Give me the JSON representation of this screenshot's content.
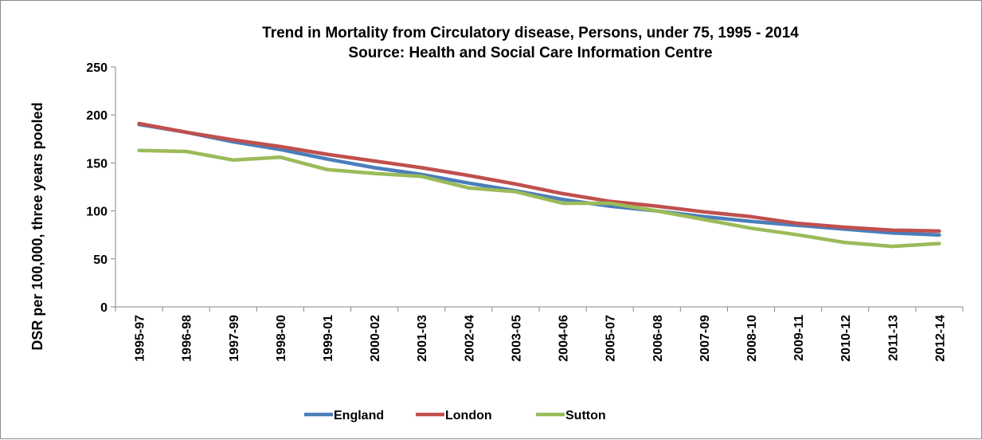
{
  "chart_data": {
    "type": "line",
    "title": "Trend in Mortality from Circulatory disease, Persons, under 75, 1995 - 2014",
    "subtitle": "Source: Health and Social Care Information Centre",
    "xlabel": "",
    "ylabel": "DSR per 100,000, three years pooled",
    "ylim": [
      0,
      250
    ],
    "yticks": [
      0,
      50,
      100,
      150,
      200,
      250
    ],
    "grid": false,
    "legend": "bottom",
    "categories": [
      "1995-97",
      "1996-98",
      "1997-99",
      "1998-00",
      "1999-01",
      "2000-02",
      "2001-03",
      "2002-04",
      "2003-05",
      "2004-06",
      "2005-07",
      "2006-08",
      "2007-09",
      "2008-10",
      "2009-11",
      "2010-12",
      "2011-13",
      "2012-14"
    ],
    "series": [
      {
        "name": "England",
        "color": "#4a7ebb",
        "values": [
          190,
          182,
          172,
          164,
          154,
          145,
          138,
          129,
          121,
          112,
          105,
          100,
          94,
          89,
          85,
          81,
          77,
          75
        ]
      },
      {
        "name": "London",
        "color": "#c0504d",
        "values": [
          191,
          182,
          174,
          167,
          159,
          152,
          145,
          137,
          128,
          118,
          110,
          105,
          99,
          94,
          87,
          83,
          80,
          79
        ]
      },
      {
        "name": "Sutton",
        "color": "#9bbb59",
        "values": [
          163,
          162,
          153,
          156,
          143,
          139,
          136,
          124,
          120,
          108,
          108,
          100,
          91,
          82,
          75,
          67,
          63,
          66
        ]
      }
    ]
  }
}
